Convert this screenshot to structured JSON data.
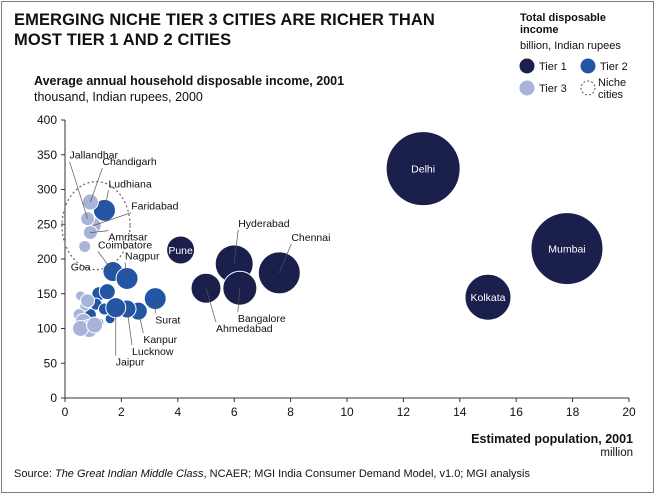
{
  "title": "EMERGING NICHE TIER 3 CITIES ARE RICHER THAN MOST TIER 1 AND 2 CITIES",
  "subtitle": "Average annual household disposable income, 2001",
  "unit": "thousand, Indian rupees, 2000",
  "legend": {
    "title": "Total disposable income",
    "unit": "billion, Indian rupees",
    "items": [
      {
        "key": "tier1",
        "label": "Tier 1"
      },
      {
        "key": "tier2",
        "label": "Tier 2"
      },
      {
        "key": "tier3",
        "label": "Tier 3"
      },
      {
        "key": "niche",
        "label": "Niche cities"
      }
    ]
  },
  "xlabel": "Estimated population, 2001",
  "xunit": "million",
  "source_prefix": "Source: ",
  "source_italic": "The Great Indian Middle Class",
  "source_rest": ", NCAER; MGI India Consumer Demand Model, v1.0; MGI analysis",
  "colors": {
    "tier1": "#1b1f4b",
    "tier2": "#2255a4",
    "tier3": "#a7b4d8",
    "outline": "#ffffff"
  },
  "chart_data": {
    "type": "scatter",
    "xlim": [
      0,
      20
    ],
    "ylim": [
      0,
      400
    ],
    "xticks": [
      0,
      2,
      4,
      6,
      8,
      10,
      12,
      14,
      16,
      18,
      20
    ],
    "yticks": [
      0,
      50,
      100,
      150,
      200,
      250,
      300,
      350,
      400
    ],
    "grid": false,
    "legend_position": "top-right",
    "points": [
      {
        "name": "Delhi",
        "tier": "tier1",
        "x": 12.7,
        "y": 330,
        "label_inside": true
      },
      {
        "name": "Mumbai",
        "tier": "tier1",
        "x": 17.8,
        "y": 215,
        "label_inside": true
      },
      {
        "name": "Kolkata",
        "tier": "tier1",
        "x": 15.0,
        "y": 145,
        "label_inside": true
      },
      {
        "name": "Pune",
        "tier": "tier1",
        "x": 4.1,
        "y": 213,
        "label_inside": true
      },
      {
        "name": "Chennai",
        "tier": "tier1",
        "x": 7.6,
        "y": 180
      },
      {
        "name": "Hyderabad",
        "tier": "tier1",
        "x": 6.0,
        "y": 193
      },
      {
        "name": "Bangalore",
        "tier": "tier1",
        "x": 6.2,
        "y": 158
      },
      {
        "name": "Ahmedabad",
        "tier": "tier1",
        "x": 5.0,
        "y": 158
      },
      {
        "name": "Coimbatore",
        "tier": "tier2",
        "x": 1.7,
        "y": 182
      },
      {
        "name": "Nagpur",
        "tier": "tier2",
        "x": 2.2,
        "y": 172
      },
      {
        "name": "Surat",
        "tier": "tier2",
        "x": 3.2,
        "y": 143
      },
      {
        "name": "Kanpur",
        "tier": "tier2",
        "x": 2.6,
        "y": 125
      },
      {
        "name": "Lucknow",
        "tier": "tier2",
        "x": 2.2,
        "y": 128
      },
      {
        "name": "Jaipur",
        "tier": "tier2",
        "x": 1.8,
        "y": 130
      },
      {
        "name": "Ludhiana",
        "tier": "tier2",
        "x": 1.4,
        "y": 270
      },
      {
        "name": "Chandigarh",
        "tier": "tier3",
        "x": 0.9,
        "y": 282
      },
      {
        "name": "Faridabad",
        "tier": "tier3",
        "x": 1.0,
        "y": 248
      },
      {
        "name": "Jallandhar",
        "tier": "tier3",
        "x": 0.8,
        "y": 258
      },
      {
        "name": "Amritsar",
        "tier": "tier3",
        "x": 0.9,
        "y": 238
      },
      {
        "name": "Goa",
        "tier": "tier3",
        "x": 0.7,
        "y": 218
      },
      {
        "name": "",
        "tier": "tier2",
        "x": 1.2,
        "y": 150
      },
      {
        "name": "",
        "tier": "tier2",
        "x": 1.5,
        "y": 153
      },
      {
        "name": "",
        "tier": "tier2",
        "x": 1.1,
        "y": 135
      },
      {
        "name": "",
        "tier": "tier2",
        "x": 1.4,
        "y": 128
      },
      {
        "name": "",
        "tier": "tier2",
        "x": 0.9,
        "y": 120
      },
      {
        "name": "",
        "tier": "tier2",
        "x": 1.2,
        "y": 108
      },
      {
        "name": "",
        "tier": "tier2",
        "x": 1.6,
        "y": 114
      },
      {
        "name": "",
        "tier": "tier3",
        "x": 0.55,
        "y": 147
      },
      {
        "name": "",
        "tier": "tier3",
        "x": 0.7,
        "y": 132
      },
      {
        "name": "",
        "tier": "tier3",
        "x": 0.5,
        "y": 120
      },
      {
        "name": "",
        "tier": "tier3",
        "x": 0.65,
        "y": 110
      },
      {
        "name": "",
        "tier": "tier3",
        "x": 0.85,
        "y": 100
      },
      {
        "name": "",
        "tier": "tier3",
        "x": 0.55,
        "y": 100
      },
      {
        "name": "",
        "tier": "tier3",
        "x": 1.05,
        "y": 105
      },
      {
        "name": "",
        "tier": "tier3",
        "x": 0.8,
        "y": 140
      }
    ]
  }
}
